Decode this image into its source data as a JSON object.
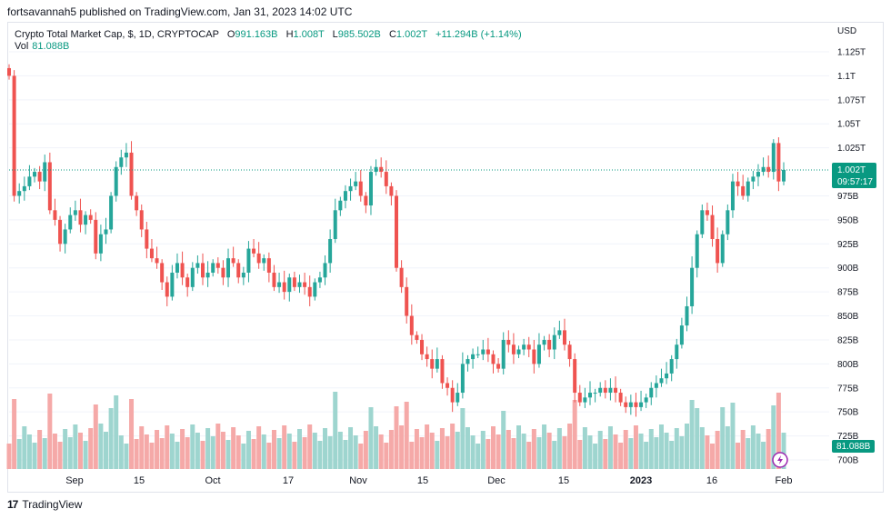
{
  "header": {
    "publisher_note": "fortsavannah5 published on TradingView.com, Jan 31, 2023 14:02 UTC"
  },
  "legend": {
    "symbol": "Crypto Total Market Cap, $, 1D, CRYPTOCAP",
    "open_label": "O",
    "open": "991.163B",
    "high_label": "H",
    "high": "1.008T",
    "low_label": "L",
    "low": "985.502B",
    "close_label": "C",
    "close": "1.002T",
    "change": "+11.294B (+1.14%)",
    "vol_label": "Vol",
    "vol_value": "81.088B"
  },
  "price_axis": {
    "currency": "USD",
    "current_price": "1.002T",
    "countdown": "09:57:17",
    "volume_badge": "81.088B"
  },
  "footer": {
    "brand": "TradingView",
    "logo": "17"
  },
  "colors": {
    "up": "#26a69a",
    "down": "#ef5350",
    "up_vol": "#9ed5cf",
    "down_vol": "#f5a9a8",
    "current_line": "#089981"
  },
  "chart_data": {
    "type": "candlestick",
    "x_ticks": [
      "Sep",
      "15",
      "Oct",
      "17",
      "Nov",
      "15",
      "Dec",
      "15",
      "2023",
      "16",
      "Feb"
    ],
    "y_ticks": [
      "1.125T",
      "1.1T",
      "1.075T",
      "1.05T",
      "1.025T",
      "975B",
      "950B",
      "925B",
      "900B",
      "875B",
      "850B",
      "825B",
      "800B",
      "775B",
      "750B",
      "725B",
      "700B"
    ],
    "y_range": [
      700,
      1130
    ],
    "y_unit": "B",
    "current_price": 1002,
    "closes": [
      1100,
      975,
      980,
      985,
      995,
      1000,
      990,
      1010,
      960,
      950,
      925,
      940,
      955,
      960,
      945,
      955,
      950,
      915,
      935,
      940,
      975,
      1005,
      1015,
      1020,
      975,
      960,
      940,
      920,
      910,
      905,
      885,
      870,
      895,
      905,
      890,
      880,
      900,
      905,
      890,
      895,
      905,
      900,
      890,
      910,
      905,
      890,
      895,
      920,
      915,
      905,
      910,
      895,
      880,
      885,
      875,
      890,
      880,
      885,
      880,
      870,
      885,
      890,
      905,
      930,
      960,
      970,
      980,
      985,
      990,
      975,
      965,
      1000,
      1005,
      1000,
      985,
      975,
      900,
      880,
      850,
      830,
      825,
      810,
      805,
      795,
      805,
      780,
      775,
      760,
      770,
      800,
      805,
      810,
      810,
      815,
      810,
      800,
      795,
      825,
      820,
      810,
      815,
      820,
      815,
      800,
      820,
      825,
      815,
      830,
      835,
      820,
      805,
      770,
      760,
      765,
      770,
      770,
      775,
      770,
      775,
      770,
      760,
      755,
      760,
      755,
      760,
      765,
      775,
      780,
      785,
      790,
      805,
      820,
      840,
      860,
      900,
      935,
      960,
      955,
      930,
      905,
      935,
      960,
      990,
      985,
      975,
      990,
      995,
      1000,
      1005,
      1000,
      1030,
      990,
      1002
    ],
    "volume_scale_note": "volume bars shown relative to visible max"
  }
}
